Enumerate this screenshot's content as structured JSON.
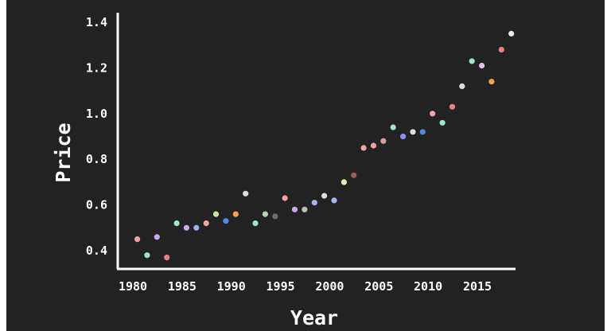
{
  "chart_data": {
    "type": "scatter",
    "title": "",
    "xlabel": "Year",
    "ylabel": "Price",
    "xlim": [
      1979,
      2018
    ],
    "ylim": [
      0.33,
      1.45
    ],
    "xticks": [
      "1980",
      "1985",
      "1990",
      "1995",
      "2000",
      "2005",
      "2010",
      "2015"
    ],
    "yticks": [
      "0.4",
      "0.6",
      "0.8",
      "1.0",
      "1.2",
      "1.4"
    ],
    "grid": false,
    "legend": "none",
    "colors": {
      "background": "#222222",
      "axis": "#ffffff",
      "text": "#ffffff"
    },
    "points": [
      {
        "x": 1980,
        "y": 0.45,
        "color": "#f2a3a3"
      },
      {
        "x": 1981,
        "y": 0.38,
        "color": "#9ee6c6"
      },
      {
        "x": 1982,
        "y": 0.46,
        "color": "#c9a6f2"
      },
      {
        "x": 1983,
        "y": 0.37,
        "color": "#ee7f7f"
      },
      {
        "x": 1984,
        "y": 0.52,
        "color": "#9ee6c6"
      },
      {
        "x": 1985,
        "y": 0.5,
        "color": "#c9a6f2"
      },
      {
        "x": 1986,
        "y": 0.5,
        "color": "#9fb0ee"
      },
      {
        "x": 1987,
        "y": 0.52,
        "color": "#f2a3a3"
      },
      {
        "x": 1988,
        "y": 0.56,
        "color": "#c6e89e"
      },
      {
        "x": 1989,
        "y": 0.53,
        "color": "#4f86e8"
      },
      {
        "x": 1990,
        "y": 0.56,
        "color": "#f5a04b"
      },
      {
        "x": 1991,
        "y": 0.65,
        "color": "#dddddd"
      },
      {
        "x": 1992,
        "y": 0.52,
        "color": "#9ee6c6"
      },
      {
        "x": 1993,
        "y": 0.56,
        "color": "#b3d6b6"
      },
      {
        "x": 1994,
        "y": 0.55,
        "color": "#7a6868"
      },
      {
        "x": 1995,
        "y": 0.63,
        "color": "#f2a3a3"
      },
      {
        "x": 1996,
        "y": 0.58,
        "color": "#c9a6f2"
      },
      {
        "x": 1997,
        "y": 0.58,
        "color": "#b9c2b9"
      },
      {
        "x": 1998,
        "y": 0.61,
        "color": "#a9b2f2"
      },
      {
        "x": 1999,
        "y": 0.64,
        "color": "#dddddd"
      },
      {
        "x": 2000,
        "y": 0.62,
        "color": "#a9b2f2"
      },
      {
        "x": 2001,
        "y": 0.7,
        "color": "#dff2a6"
      },
      {
        "x": 2002,
        "y": 0.73,
        "color": "#a05a5a"
      },
      {
        "x": 2003,
        "y": 0.85,
        "color": "#f2a3a3"
      },
      {
        "x": 2004,
        "y": 0.86,
        "color": "#f2a3a3"
      },
      {
        "x": 2005,
        "y": 0.88,
        "color": "#d9a0a0"
      },
      {
        "x": 2006,
        "y": 0.94,
        "color": "#9ee6c6"
      },
      {
        "x": 2007,
        "y": 0.9,
        "color": "#8f8ff0"
      },
      {
        "x": 2008,
        "y": 0.92,
        "color": "#dddddd"
      },
      {
        "x": 2009,
        "y": 0.92,
        "color": "#4f86e8"
      },
      {
        "x": 2010,
        "y": 1.0,
        "color": "#f2a3a3"
      },
      {
        "x": 2011,
        "y": 0.96,
        "color": "#9ee6c6"
      },
      {
        "x": 2012,
        "y": 1.03,
        "color": "#ee7f7f"
      },
      {
        "x": 2013,
        "y": 1.12,
        "color": "#dddddd"
      },
      {
        "x": 2014,
        "y": 1.23,
        "color": "#9ee6c6"
      },
      {
        "x": 2015,
        "y": 1.21,
        "color": "#dcc2f2"
      },
      {
        "x": 2016,
        "y": 1.14,
        "color": "#f5a04b"
      },
      {
        "x": 2017,
        "y": 1.28,
        "color": "#ee7f7f"
      },
      {
        "x": 2018,
        "y": 1.35,
        "color": "#e8e8e8"
      }
    ]
  }
}
